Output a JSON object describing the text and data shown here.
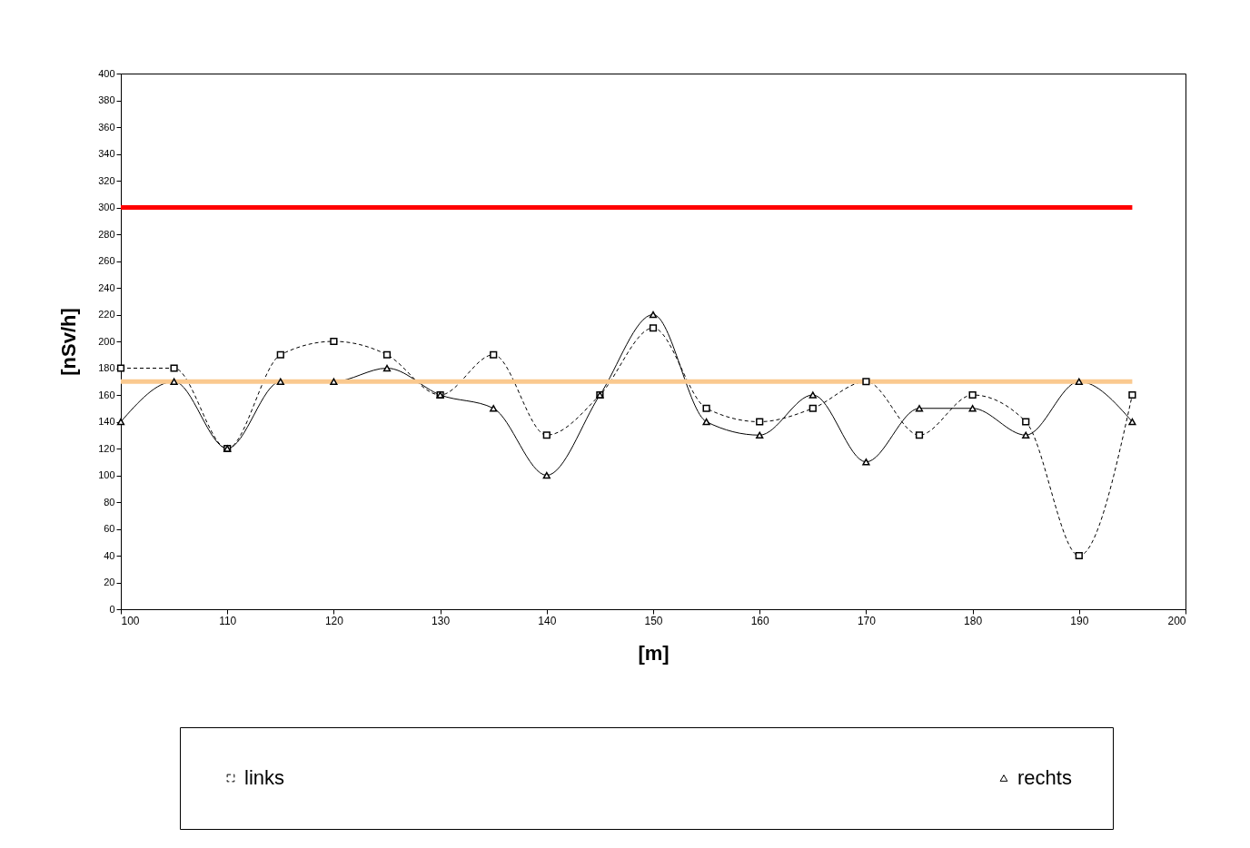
{
  "chart_data": {
    "type": "line",
    "xlabel": "[m]",
    "ylabel": "[nSv/h]",
    "x": [
      100,
      105,
      110,
      115,
      120,
      125,
      130,
      135,
      140,
      145,
      150,
      155,
      160,
      165,
      170,
      175,
      180,
      185,
      190,
      195
    ],
    "series": [
      {
        "name": "links",
        "color": "#000000",
        "marker": "square",
        "line_style": "dashed",
        "values": [
          180,
          180,
          120,
          190,
          200,
          190,
          160,
          190,
          130,
          160,
          210,
          150,
          140,
          150,
          170,
          130,
          160,
          140,
          40,
          160
        ]
      },
      {
        "name": "rechts",
        "color": "#000000",
        "marker": "triangle",
        "line_style": "solid",
        "values": [
          140,
          170,
          120,
          170,
          170,
          180,
          160,
          150,
          100,
          160,
          220,
          140,
          130,
          160,
          110,
          150,
          150,
          130,
          170,
          140
        ]
      }
    ],
    "ref_lines": [
      {
        "axis": "y",
        "value": 300,
        "color": "#ff0000"
      },
      {
        "axis": "y",
        "value": 170,
        "color": "#fac98f"
      }
    ],
    "xlim": [
      100,
      200
    ],
    "xticks": [
      100,
      110,
      120,
      130,
      140,
      150,
      160,
      170,
      180,
      190,
      200
    ],
    "ylim": [
      0,
      400
    ],
    "yticks": [
      0,
      20,
      40,
      60,
      80,
      100,
      120,
      140,
      160,
      180,
      200,
      220,
      240,
      260,
      280,
      300,
      320,
      340,
      360,
      380,
      400
    ],
    "grid": false,
    "legend": "bottom"
  }
}
